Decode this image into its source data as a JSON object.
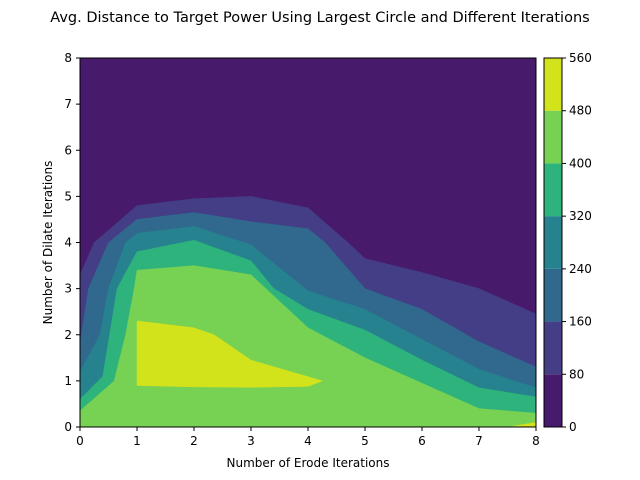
{
  "chart_data": {
    "type": "contourf",
    "title": "Avg. Distance to Target Power Using Largest Circle and Different Iterations",
    "xlabel": "Number of Erode Iterations",
    "ylabel": "Number of Dilate Iterations",
    "xlim": [
      0,
      8
    ],
    "ylim": [
      0,
      8
    ],
    "x_ticks": [
      "0",
      "1",
      "2",
      "3",
      "4",
      "5",
      "6",
      "7",
      "8"
    ],
    "y_ticks": [
      "0",
      "1",
      "2",
      "3",
      "4",
      "5",
      "6",
      "7",
      "8"
    ],
    "colorbar": {
      "levels": [
        0,
        80,
        160,
        240,
        320,
        400,
        480,
        560
      ],
      "tick_labels": [
        "0",
        "80",
        "160",
        "240",
        "320",
        "400",
        "480",
        "560"
      ],
      "colors": [
        "#481a6c",
        "#433e85",
        "#31688e",
        "#26828e",
        "#2eb37c",
        "#77d153",
        "#d2e21b"
      ],
      "position": "right"
    },
    "contour_bands": [
      {
        "range": [
          0,
          80
        ],
        "color": "#481a6c",
        "boundary": [
          [
            0,
            0
          ],
          [
            8,
            0
          ],
          [
            8,
            8
          ],
          [
            0,
            8
          ]
        ]
      },
      {
        "range": [
          80,
          160
        ],
        "color": "#433e85",
        "boundary": [
          [
            0,
            0
          ],
          [
            0,
            3.3
          ],
          [
            0.25,
            4.0
          ],
          [
            1.0,
            4.8
          ],
          [
            2.0,
            4.95
          ],
          [
            3.0,
            5.0
          ],
          [
            4.0,
            4.75
          ],
          [
            4.7,
            4.0
          ],
          [
            5.0,
            3.65
          ],
          [
            6.0,
            3.35
          ],
          [
            7.0,
            3.0
          ],
          [
            8.0,
            2.45
          ],
          [
            8,
            0
          ]
        ]
      },
      {
        "range": [
          160,
          240
        ],
        "color": "#31688e",
        "boundary": [
          [
            0,
            0
          ],
          [
            0,
            1.8
          ],
          [
            0.15,
            3.0
          ],
          [
            0.5,
            4.0
          ],
          [
            1.0,
            4.5
          ],
          [
            2.0,
            4.65
          ],
          [
            3.0,
            4.45
          ],
          [
            4.0,
            4.3
          ],
          [
            4.3,
            4.0
          ],
          [
            5.0,
            3.0
          ],
          [
            6.0,
            2.55
          ],
          [
            7.0,
            1.85
          ],
          [
            8.0,
            1.3
          ],
          [
            8,
            0
          ]
        ]
      },
      {
        "range": [
          240,
          320
        ],
        "color": "#26828e",
        "boundary": [
          [
            0,
            0
          ],
          [
            0,
            1.2
          ],
          [
            0.35,
            2.0
          ],
          [
            0.5,
            3.0
          ],
          [
            0.8,
            4.0
          ],
          [
            1.0,
            4.2
          ],
          [
            2.0,
            4.35
          ],
          [
            3.0,
            3.95
          ],
          [
            4.0,
            2.95
          ],
          [
            5.0,
            2.55
          ],
          [
            6.0,
            1.9
          ],
          [
            7.0,
            1.25
          ],
          [
            8.0,
            0.85
          ],
          [
            8,
            0
          ]
        ]
      },
      {
        "range": [
          320,
          400
        ],
        "color": "#2eb37c",
        "boundary": [
          [
            0,
            0
          ],
          [
            0,
            0.6
          ],
          [
            0.4,
            1.1
          ],
          [
            0.65,
            3.0
          ],
          [
            1.0,
            3.8
          ],
          [
            2.0,
            4.05
          ],
          [
            3.0,
            3.6
          ],
          [
            3.4,
            3.0
          ],
          [
            4.0,
            2.55
          ],
          [
            5.0,
            2.1
          ],
          [
            6.0,
            1.45
          ],
          [
            7.0,
            0.85
          ],
          [
            8.0,
            0.65
          ],
          [
            8,
            0
          ]
        ]
      },
      {
        "range": [
          400,
          480
        ],
        "color": "#77d153",
        "boundary": [
          [
            0,
            0
          ],
          [
            0,
            0.35
          ],
          [
            0.6,
            1.0
          ],
          [
            0.8,
            2.0
          ],
          [
            0.95,
            3.0
          ],
          [
            1.0,
            3.4
          ],
          [
            2.0,
            3.5
          ],
          [
            3.0,
            3.3
          ],
          [
            4.0,
            2.15
          ],
          [
            5.0,
            1.5
          ],
          [
            6.0,
            0.95
          ],
          [
            7.0,
            0.4
          ],
          [
            8.0,
            0.3
          ],
          [
            8,
            0
          ]
        ]
      },
      {
        "range": [
          480,
          560
        ],
        "color": "#d2e21b",
        "boundary": [
          [
            1.0,
            0.9
          ],
          [
            2.0,
            0.87
          ],
          [
            3.0,
            0.86
          ],
          [
            4.0,
            0.88
          ],
          [
            4.25,
            1.0
          ],
          [
            3.0,
            1.45
          ],
          [
            2.35,
            2.0
          ],
          [
            2.0,
            2.15
          ],
          [
            1.0,
            2.3
          ]
        ]
      },
      {
        "range": [
          480,
          560
        ],
        "color": "#d2e21b",
        "boundary": [
          [
            7.6,
            0.02
          ],
          [
            8.0,
            0.02
          ],
          [
            8.0,
            0.1
          ]
        ]
      }
    ]
  }
}
